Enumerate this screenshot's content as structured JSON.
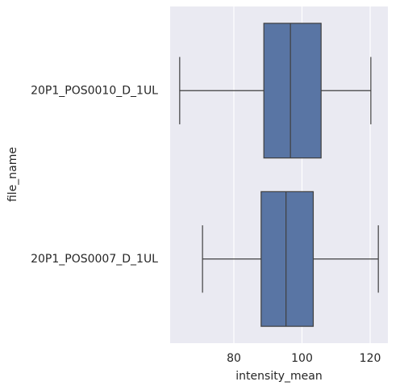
{
  "chart_data": {
    "type": "box",
    "orientation": "horizontal",
    "xlabel": "intensity_mean",
    "ylabel": "file_name",
    "categories": [
      "20P1_POS0010_D_1UL",
      "20P1_POS0007_D_1UL"
    ],
    "boxes": [
      {
        "whislo": 64.1,
        "q1": 88.8,
        "median": 96.6,
        "q3": 105.6,
        "whishi": 120.2
      },
      {
        "whislo": 70.8,
        "q1": 88.0,
        "median": 95.3,
        "q3": 103.3,
        "whishi": 122.4
      }
    ],
    "color": "#5975a4",
    "xlim": [
      61.3,
      125.2
    ],
    "xticks": [
      80,
      100,
      120
    ],
    "grid": true
  }
}
